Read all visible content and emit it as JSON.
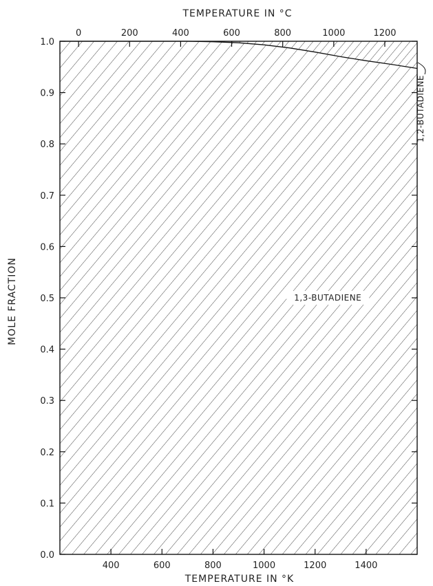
{
  "chart_data": {
    "type": "area",
    "title": "",
    "xlabel": "TEMPERATURE IN °K",
    "x2label": "TEMPERATURE IN °C",
    "ylabel": "MOLE FRACTION",
    "xlim": [
      200,
      1600
    ],
    "ylim": [
      0.0,
      1.0
    ],
    "x_ticks": [
      400,
      600,
      800,
      1000,
      1200,
      1400
    ],
    "x_tick_labels": [
      "400",
      "600",
      "800",
      "1000",
      "1200",
      "1400"
    ],
    "x2_ticks": [
      0,
      200,
      400,
      600,
      800,
      1000,
      1200
    ],
    "x2_tick_labels": [
      "0",
      "200",
      "400",
      "600",
      "800",
      "1000",
      "1200"
    ],
    "y_ticks": [
      0.0,
      0.1,
      0.2,
      0.3,
      0.4,
      0.5,
      0.6,
      0.7,
      0.8,
      0.9,
      1.0
    ],
    "y_tick_labels": [
      "0.0",
      "0.1",
      "0.2",
      "0.3",
      "0.4",
      "0.5",
      "0.6",
      "0.7",
      "0.8",
      "0.9",
      "1.0"
    ],
    "grid": false,
    "boundary": {
      "x": [
        200,
        700,
        800,
        900,
        1000,
        1100,
        1200,
        1300,
        1400,
        1500,
        1600
      ],
      "y": [
        1.0,
        1.0,
        0.999,
        0.997,
        0.993,
        0.987,
        0.979,
        0.97,
        0.962,
        0.955,
        0.947
      ]
    },
    "regions": [
      {
        "name": "1,3-BUTADIENE",
        "label_x": 1250,
        "label_y": 0.5
      },
      {
        "name": "1,2-BUTADIENE"
      }
    ]
  }
}
